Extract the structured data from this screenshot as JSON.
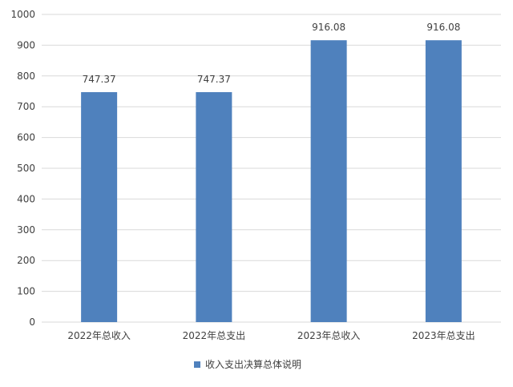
{
  "chart_data": {
    "type": "bar",
    "title": "",
    "xlabel": "",
    "ylabel": "",
    "categories": [
      "2022年总收入",
      "2022年总支出",
      "2023年总收入",
      "2023年总支出"
    ],
    "series": [
      {
        "name": "收入支出决算总体说明",
        "values": [
          747.37,
          747.37,
          916.08,
          916.08
        ],
        "data_labels": [
          "747.37",
          "747.37",
          "916.08",
          "916.08"
        ],
        "color": "#4F81BD"
      }
    ],
    "ylim": [
      0,
      1000
    ],
    "yticks": [
      0,
      100,
      200,
      300,
      400,
      500,
      600,
      700,
      800,
      900,
      1000
    ],
    "ytick_labels": [
      "0",
      "100",
      "200",
      "300",
      "400",
      "500",
      "600",
      "700",
      "800",
      "900",
      "1000"
    ],
    "grid": true,
    "legend_position": "bottom"
  }
}
